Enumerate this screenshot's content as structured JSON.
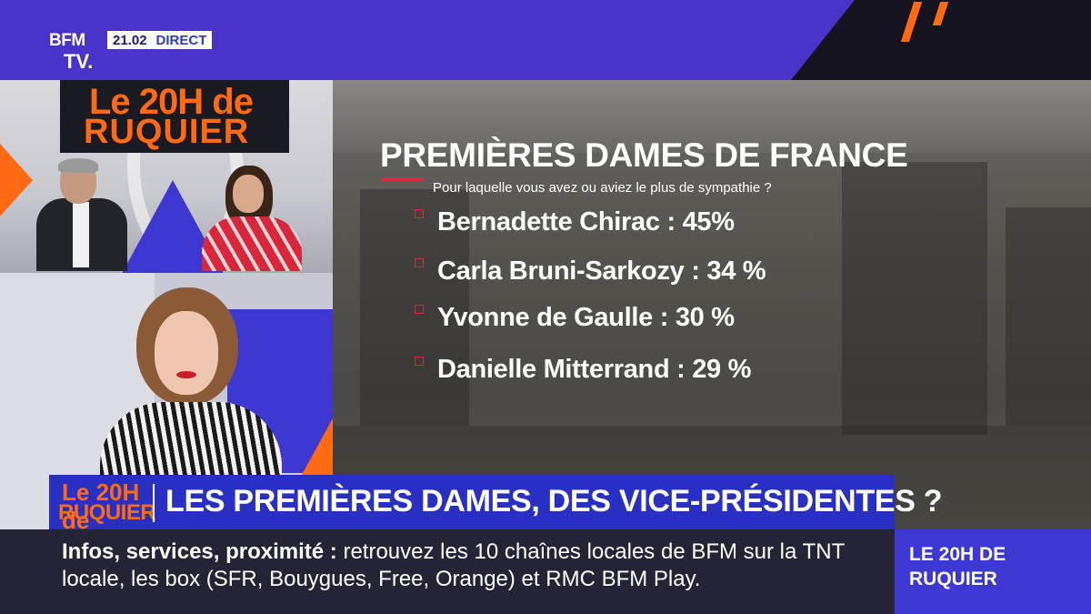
{
  "channel": {
    "logo_line1": "BFM",
    "logo_line2": "TV.",
    "time": "21.02",
    "live": "DIRECT"
  },
  "show": {
    "logo_line1": "Le 20H de",
    "logo_line2": "RUQUIER",
    "banner_logo_line1": "Le 20H de",
    "banner_logo_line2": "RUQUIER"
  },
  "graphic": {
    "title": "PREMIÈRES DAMES DE FRANCE",
    "subtitle": "Pour laquelle vous avez ou aviez le plus de sympathie ?",
    "items": [
      {
        "label": "Bernadette Chirac : 45%"
      },
      {
        "label": "Carla Bruni-Sarkozy : 34 %"
      },
      {
        "label": "Yvonne de Gaulle : 30 %"
      },
      {
        "label": "Danielle Mitterrand : 29 %"
      }
    ]
  },
  "banner": {
    "title": "LES PREMIÈRES DAMES, DES VICE-PRÉSIDENTES ?"
  },
  "ticker": {
    "lead": "Infos, services, proximité :",
    "text": " retrouvez les 10 chaînes locales de BFM sur la TNT locale, les box (SFR, Bouygues, Free, Orange) et RMC BFM Play."
  },
  "show_box": {
    "label": "LE 20H DE RUQUIER"
  },
  "colors": {
    "brand_purple": "#4a33c8",
    "accent_orange": "#ff6a13",
    "bullet_red": "#e0283a",
    "banner_blue": "#2a2fc4"
  }
}
